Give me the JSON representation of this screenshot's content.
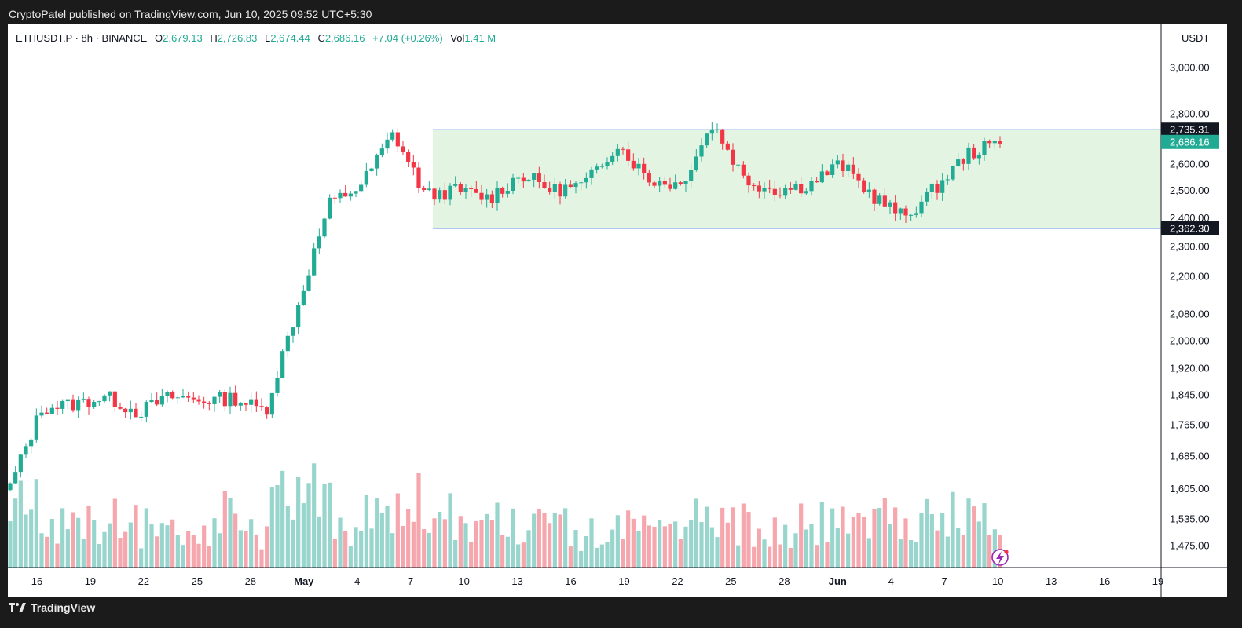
{
  "header": {
    "published_text": "CryptoPatel published on TradingView.com, Jun 10, 2025 09:52 UTC+5:30"
  },
  "legend": {
    "symbol_line": "ETHUSDT.P · 8h · BINANCE",
    "open_label": "O",
    "open_value": "2,679.13",
    "high_label": "H",
    "high_value": "2,726.83",
    "low_label": "L",
    "low_value": "2,674.44",
    "close_label": "C",
    "close_value": "2,686.16",
    "change": "+7.04 (+0.26%)",
    "vol_label": "Vol",
    "vol_value": "1.41 M"
  },
  "price_axis": {
    "currency": "USDT",
    "ticks": [
      "3,000.00",
      "2,800.00",
      "2,600.00",
      "2,500.00",
      "2,400.00",
      "2,300.00",
      "2,200.00",
      "2,080.00",
      "2,000.00",
      "1,920.00",
      "1,845.00",
      "1,765.00",
      "1,685.00",
      "1,605.00",
      "1,535.00",
      "1,475.00"
    ],
    "tags": [
      {
        "text": "2,735.31",
        "value": 2735.31,
        "bg": "#131722"
      },
      {
        "text": "2,686.16",
        "value": 2686.16,
        "bg": "#22ab94"
      },
      {
        "text": "2,362.30",
        "value": 2362.3,
        "bg": "#131722"
      }
    ]
  },
  "time_axis": {
    "labels": [
      {
        "text": "16",
        "bold": false
      },
      {
        "text": "19",
        "bold": false
      },
      {
        "text": "22",
        "bold": false
      },
      {
        "text": "25",
        "bold": false
      },
      {
        "text": "28",
        "bold": false
      },
      {
        "text": "May",
        "bold": true
      },
      {
        "text": "4",
        "bold": false
      },
      {
        "text": "7",
        "bold": false
      },
      {
        "text": "10",
        "bold": false
      },
      {
        "text": "13",
        "bold": false
      },
      {
        "text": "16",
        "bold": false
      },
      {
        "text": "19",
        "bold": false
      },
      {
        "text": "22",
        "bold": false
      },
      {
        "text": "25",
        "bold": false
      },
      {
        "text": "28",
        "bold": false
      },
      {
        "text": "Jun",
        "bold": true
      },
      {
        "text": "4",
        "bold": false
      },
      {
        "text": "7",
        "bold": false
      },
      {
        "text": "10",
        "bold": false
      },
      {
        "text": "13",
        "bold": false
      },
      {
        "text": "16",
        "bold": false
      },
      {
        "text": "19",
        "bold": false
      }
    ]
  },
  "footer": {
    "brand": "TradingView"
  },
  "colors": {
    "up": "#22ab94",
    "down": "#f23645",
    "up_vol": "#98d6cd",
    "down_vol": "#f5a7ad",
    "range_fill": "#e3f4e2",
    "range_line": "#7aa7e6"
  },
  "chart_data": {
    "type": "candlestick",
    "symbol": "ETHUSDT.P",
    "interval": "8h",
    "exchange": "BINANCE",
    "y_scale": "log",
    "ylim": [
      1440,
      3080
    ],
    "x_start": "Apr 14",
    "x_end": "Jun 19",
    "anchor_prices": [
      1610,
      1810,
      1820,
      1840,
      1798,
      1840,
      1830,
      1836,
      1800,
      2100,
      2450,
      2520,
      2720,
      2480,
      2500,
      2470,
      2560,
      2500,
      2520,
      2680,
      2540,
      2520,
      2760,
      2540,
      2500,
      2520,
      2600,
      2480,
      2400,
      2510,
      2640,
      2686
    ],
    "annotations": [
      {
        "type": "range_box",
        "from": "May 9",
        "to": "Jun 19",
        "top": 2735.31,
        "bottom": 2362.3
      }
    ]
  }
}
